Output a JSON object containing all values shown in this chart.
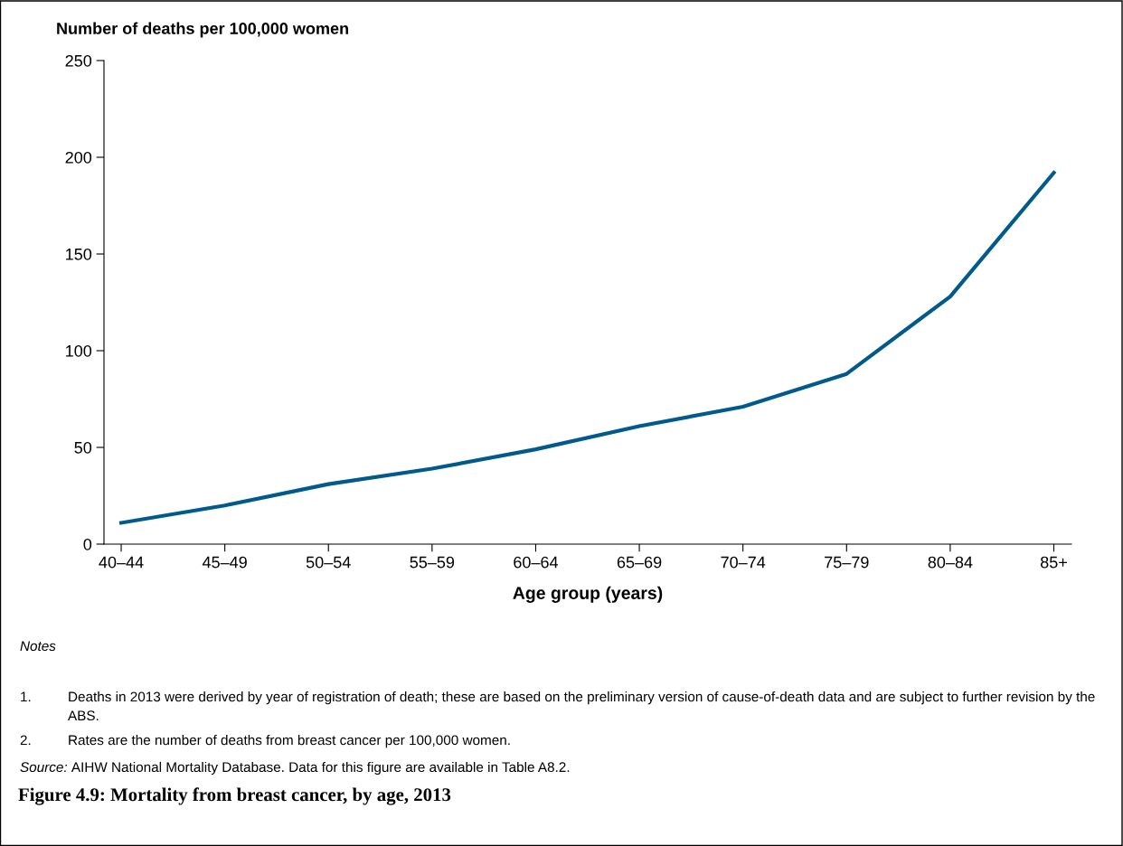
{
  "chart_data": {
    "type": "line",
    "title": "Figure 4.9: Mortality from breast cancer, by age, 2013",
    "xlabel": "Age group (years)",
    "ylabel": "Number of deaths per 100,000 women",
    "categories": [
      "40–44",
      "45–49",
      "50–54",
      "55–59",
      "60–64",
      "65–69",
      "70–74",
      "75–79",
      "80–84",
      "85+"
    ],
    "series": [
      {
        "color": "#005a8c",
        "values": [
          11,
          20,
          31,
          39,
          49,
          61,
          71,
          88,
          128,
          192
        ]
      }
    ],
    "ylim": [
      0,
      250
    ],
    "yticks": [
      0,
      50,
      100,
      150,
      200,
      250
    ],
    "grid": false,
    "marker": "none",
    "line_style": "solid",
    "annotations": [
      "Notes",
      "1.\tDeaths in 2013 were derived by year of registration of death; these are based on the preliminary version of cause-of-death data and are subject to further revision by the ABS.",
      "2.\tRates are the number of deaths from breast cancer per 100,000 women.",
      "Source: AIHW National Mortality Database. Data for this figure are available in Table A8.2."
    ]
  }
}
